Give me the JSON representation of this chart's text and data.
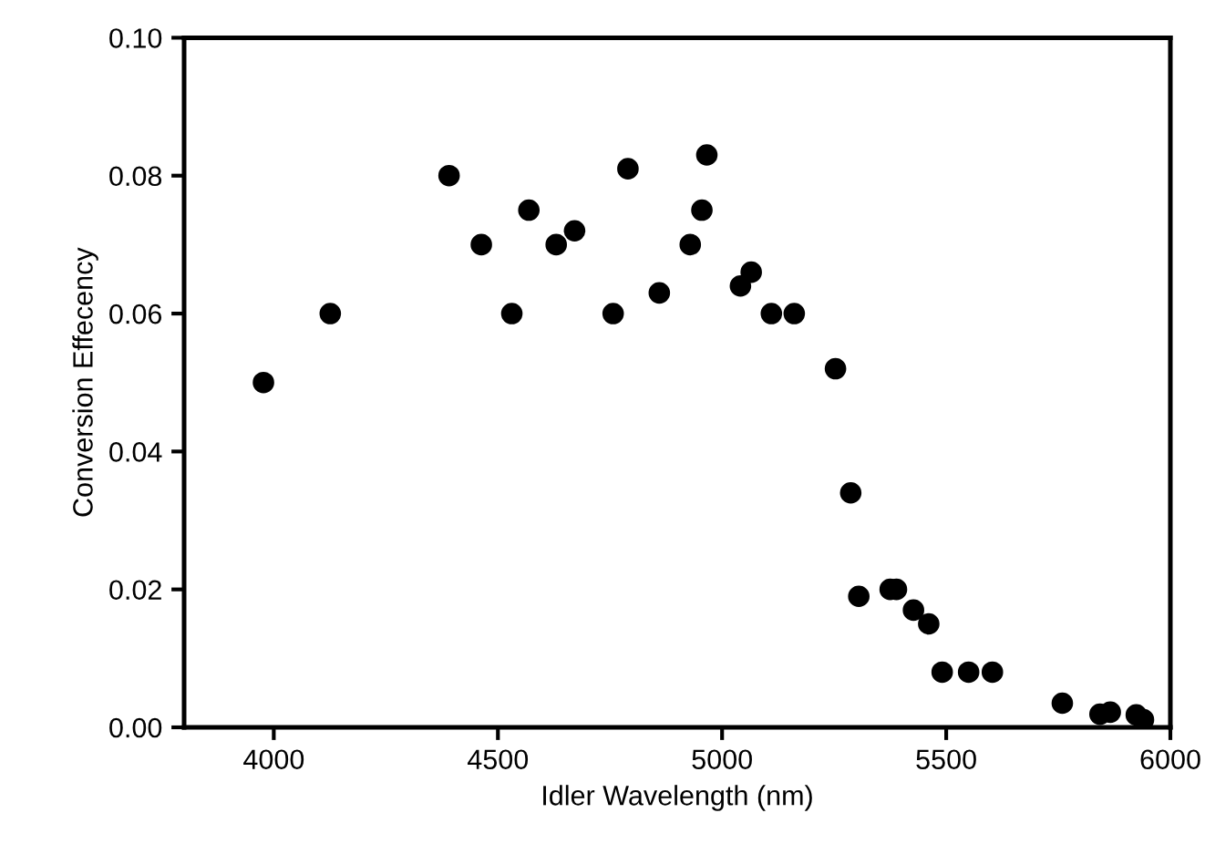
{
  "chart_data": {
    "type": "scatter",
    "xlabel": "Idler Wavelength (nm)",
    "ylabel": "Conversion Effecency",
    "x": [
      3977,
      4126,
      4391,
      4463,
      4531,
      4569,
      4630,
      4671,
      4757,
      4790,
      4860,
      4929,
      4955,
      4966,
      5041,
      5065,
      5110,
      5161,
      5253,
      5287,
      5305,
      5375,
      5389,
      5427,
      5461,
      5491,
      5550,
      5603,
      5759,
      5843,
      5866,
      5924,
      5940
    ],
    "series": [
      {
        "color": "#000000",
        "values": [
          0.05,
          0.06,
          0.08,
          0.07,
          0.06,
          0.075,
          0.07,
          0.072,
          0.06,
          0.081,
          0.063,
          0.07,
          0.075,
          0.083,
          0.064,
          0.066,
          0.06,
          0.06,
          0.052,
          0.034,
          0.019,
          0.02,
          0.02,
          0.017,
          0.015,
          0.008,
          0.008,
          0.008,
          0.0035,
          0.0019,
          0.0022,
          0.0018,
          0.0011
        ]
      }
    ],
    "xlim": [
      3800,
      6000
    ],
    "xticks": [
      4000,
      4500,
      5000,
      5500,
      6000
    ],
    "ylim": [
      0,
      0.1
    ],
    "yticks": [
      {
        "value": 0,
        "label": "0.00"
      },
      {
        "value": 0.02,
        "label": "0.02"
      },
      {
        "value": 0.04,
        "label": "0.04"
      },
      {
        "value": 0.06,
        "label": "0.06"
      },
      {
        "value": 0.08,
        "label": "0.08"
      },
      {
        "value": 0.1,
        "label": "0.10"
      }
    ],
    "marker": "circle",
    "grid": false,
    "legend": false
  }
}
